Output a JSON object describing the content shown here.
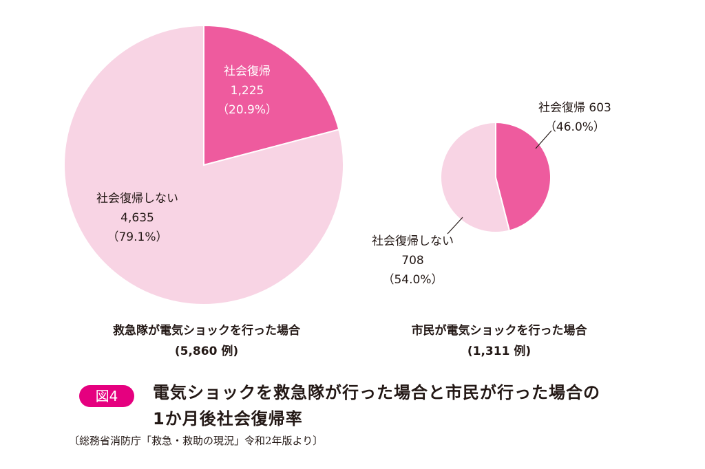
{
  "colors": {
    "recovered": "#ee5b9e",
    "not_recovered": "#f8d4e4",
    "badge": "#e5007f"
  },
  "chart_data": [
    {
      "type": "pie",
      "title": "救急隊が電気ショックを行った場合",
      "subtitle": "(5,860 例)",
      "total": 5860,
      "slices": [
        {
          "label": "社会復帰",
          "value": 1225,
          "value_text": "1,225",
          "percent": 20.9,
          "percent_text": "（20.9%）"
        },
        {
          "label": "社会復帰しない",
          "value": 4635,
          "value_text": "4,635",
          "percent": 79.1,
          "percent_text": "（79.1%）"
        }
      ]
    },
    {
      "type": "pie",
      "title": "市民が電気ショックを行った場合",
      "subtitle": "(1,311 例)",
      "total": 1311,
      "slices": [
        {
          "label": "社会復帰",
          "value": 603,
          "value_text": "603",
          "percent": 46.0,
          "percent_text": "（46.0%）"
        },
        {
          "label": "社会復帰しない",
          "value": 708,
          "value_text": "708",
          "percent": 54.0,
          "percent_text": "（54.0%）"
        }
      ]
    }
  ],
  "figure": {
    "badge": "図4",
    "title_line1": "電気ショックを救急隊が行った場合と市民が行った場合の",
    "title_line2": "1か月後社会復帰率",
    "source": "〔総務省消防庁「救急・救助の現況」令和2年版より〕"
  }
}
